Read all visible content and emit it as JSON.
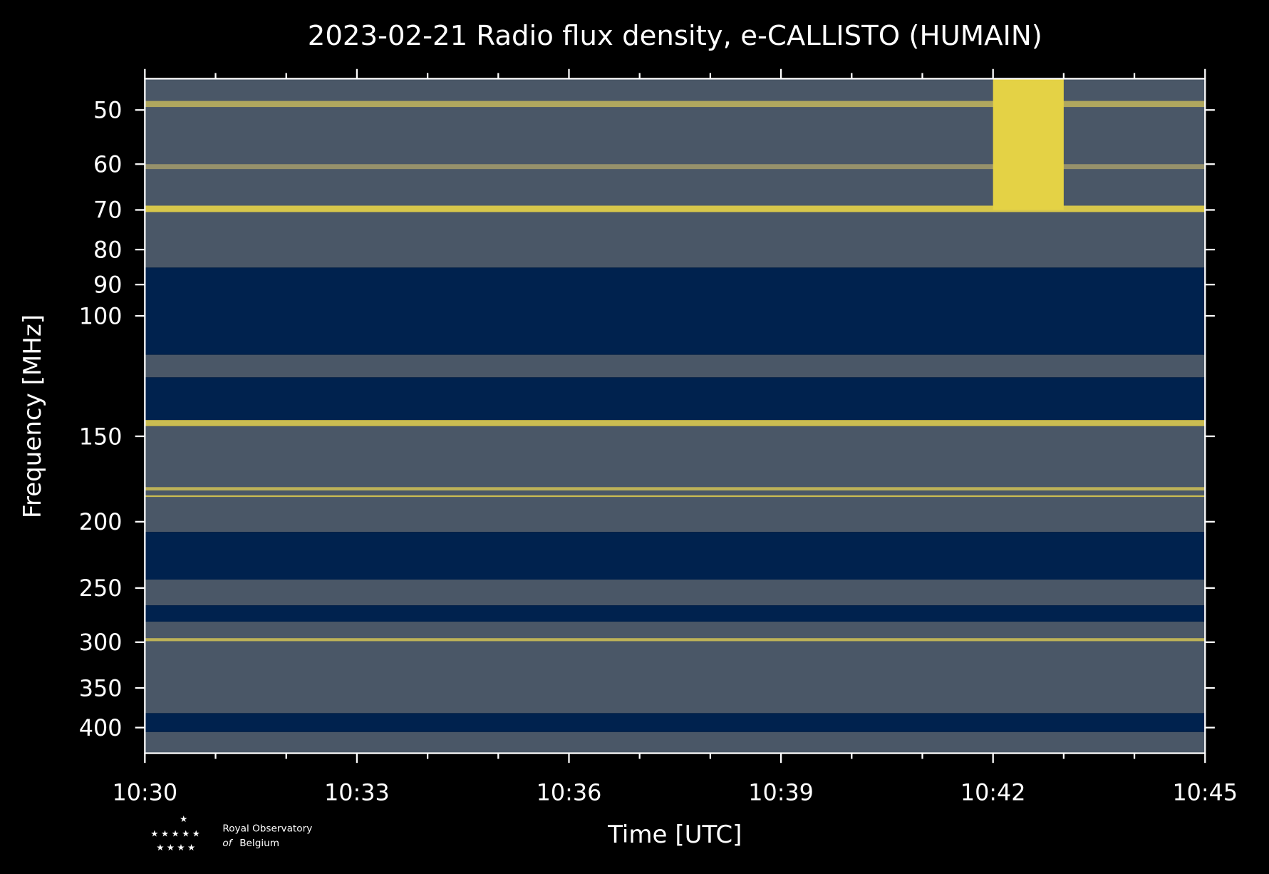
{
  "chart_data": {
    "type": "spectrogram",
    "title": "2023-02-21 Radio flux density, e-CALLISTO (HUMAIN)",
    "xlabel": "Time [UTC]",
    "ylabel": "Frequency [MHz]",
    "xlim": [
      "10:30",
      "10:45"
    ],
    "xticks": [
      "10:30",
      "10:33",
      "10:36",
      "10:39",
      "10:42",
      "10:45"
    ],
    "xminorticks": [
      "10:31",
      "10:32",
      "10:34",
      "10:35",
      "10:37",
      "10:38",
      "10:40",
      "10:41",
      "10:43",
      "10:44"
    ],
    "ylim": [
      45,
      436
    ],
    "yscale": "log",
    "y_inverted": true,
    "yticks": [
      50,
      60,
      70,
      80,
      90,
      100,
      150,
      200,
      250,
      300,
      350,
      400
    ],
    "colormap": [
      "#00224e",
      "#7c7b78",
      "#fee838"
    ],
    "cells": [
      {
        "t0": "10:30",
        "t1": "10:45",
        "f0": 45,
        "f1": 85,
        "level": 0.3
      },
      {
        "t0": "10:30",
        "t1": "10:45",
        "f0": 48.5,
        "f1": 49.5,
        "level": 0.7
      },
      {
        "t0": "10:30",
        "t1": "10:45",
        "f0": 60,
        "f1": 61,
        "level": 0.6
      },
      {
        "t0": "10:30",
        "t1": "10:45",
        "f0": 69,
        "f1": 70.5,
        "level": 0.85
      },
      {
        "t0": "10:30",
        "t1": "10:45",
        "f0": 85,
        "f1": 114,
        "level": 0
      },
      {
        "t0": "10:30",
        "t1": "10:45",
        "f0": 114,
        "f1": 123,
        "level": 0.3
      },
      {
        "t0": "10:30",
        "t1": "10:45",
        "f0": 123,
        "f1": 142,
        "level": 0
      },
      {
        "t0": "10:30",
        "t1": "10:45",
        "f0": 142,
        "f1": 145,
        "level": 0.8
      },
      {
        "t0": "10:30",
        "t1": "10:45",
        "f0": 145,
        "f1": 207,
        "level": 0.3
      },
      {
        "t0": "10:30",
        "t1": "10:45",
        "f0": 178,
        "f1": 180,
        "level": 0.75
      },
      {
        "t0": "10:30",
        "t1": "10:45",
        "f0": 183,
        "f1": 184,
        "level": 0.8
      },
      {
        "t0": "10:30",
        "t1": "10:45",
        "f0": 207,
        "f1": 243,
        "level": 0
      },
      {
        "t0": "10:30",
        "t1": "10:45",
        "f0": 243,
        "f1": 265,
        "level": 0.3
      },
      {
        "t0": "10:30",
        "t1": "10:45",
        "f0": 265,
        "f1": 280,
        "level": 0
      },
      {
        "t0": "10:30",
        "t1": "10:45",
        "f0": 280,
        "f1": 381,
        "level": 0.3
      },
      {
        "t0": "10:30",
        "t1": "10:45",
        "f0": 296,
        "f1": 299,
        "level": 0.75
      },
      {
        "t0": "10:30",
        "t1": "10:45",
        "f0": 381,
        "f1": 406,
        "level": 0
      },
      {
        "t0": "10:30",
        "t1": "10:45",
        "f0": 406,
        "f1": 436,
        "level": 0.3
      },
      {
        "t0": "10:42",
        "t1": "10:43",
        "f0": 45,
        "f1": 70,
        "level": 0.9
      }
    ]
  },
  "logo": {
    "line1": "Royal Observatory",
    "line2a": "of",
    "line2b": "Belgium"
  }
}
